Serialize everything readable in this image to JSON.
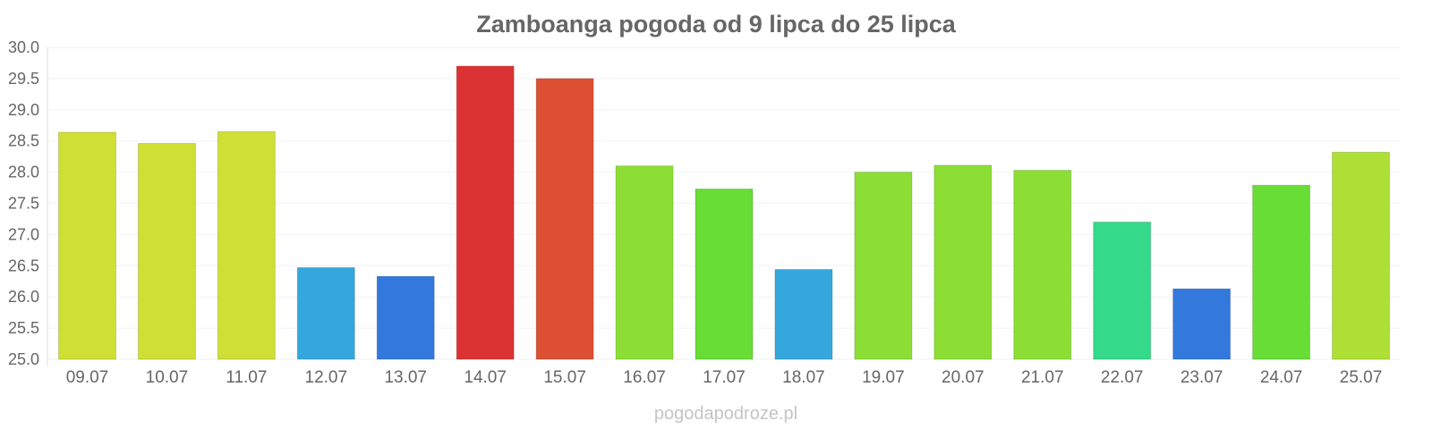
{
  "chart_data": {
    "type": "bar",
    "title": "Zamboanga pogoda od 9 lipca do 25 lipca",
    "xlabel": "",
    "ylabel": "",
    "ylim": [
      25.0,
      30.0
    ],
    "yticks": [
      "25.0",
      "25.5",
      "26.0",
      "26.5",
      "27.0",
      "27.5",
      "28.0",
      "28.5",
      "29.0",
      "29.5",
      "30.0"
    ],
    "grid": true,
    "categories": [
      "09.07",
      "10.07",
      "11.07",
      "12.07",
      "13.07",
      "14.07",
      "15.07",
      "16.07",
      "17.07",
      "18.07",
      "19.07",
      "20.07",
      "21.07",
      "22.07",
      "23.07",
      "24.07",
      "25.07"
    ],
    "values": [
      28.64,
      28.46,
      28.65,
      26.47,
      26.33,
      29.7,
      29.5,
      28.1,
      27.73,
      26.44,
      28.0,
      28.11,
      28.03,
      27.2,
      26.13,
      27.79,
      28.32
    ],
    "colors": [
      "#cfdf33",
      "#cfdf33",
      "#cfdf33",
      "#34a8dd",
      "#3378dd",
      "#db3333",
      "#dd5033",
      "#8cde35",
      "#67dd35",
      "#34a8dd",
      "#8cde35",
      "#8cde35",
      "#8cde35",
      "#34da89",
      "#3378dd",
      "#67dd35",
      "#addf35"
    ]
  },
  "source": "pogodapodroze.pl"
}
